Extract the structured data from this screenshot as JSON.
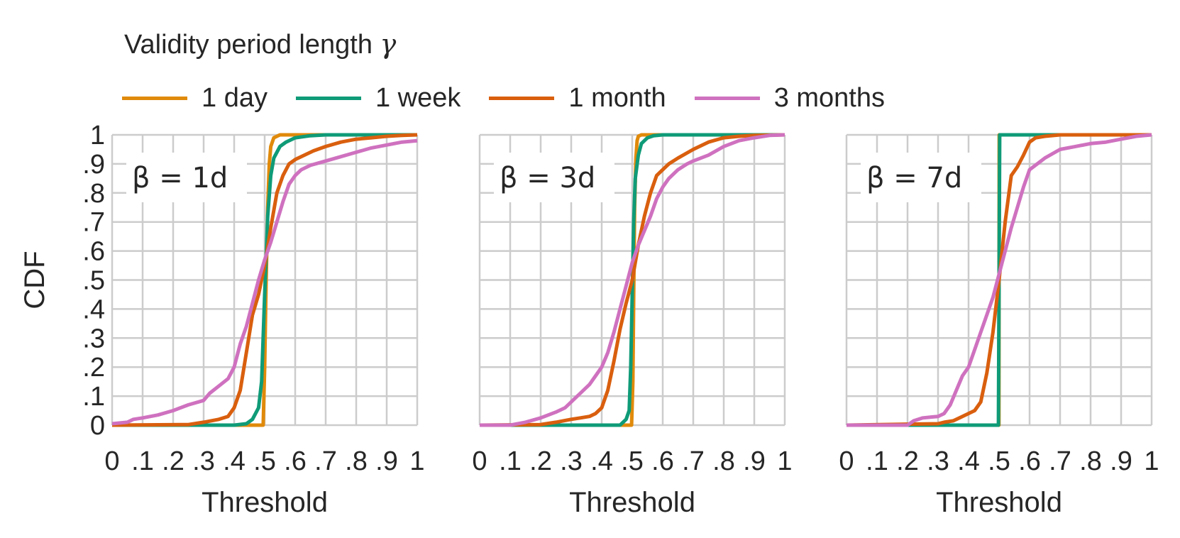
{
  "legend": {
    "title": "Validity period length",
    "title_symbol": "γ",
    "entries": [
      {
        "label": "1 day",
        "color": "#e08a0b"
      },
      {
        "label": "1 week",
        "color": "#0f9b77"
      },
      {
        "label": "1 month",
        "color": "#d95f0e"
      },
      {
        "label": "3 months",
        "color": "#cf71bf"
      }
    ]
  },
  "chart_data": [
    {
      "type": "line",
      "panel_label": "β = 1d",
      "xlabel": "Threshold",
      "ylabel": "CDF",
      "xlim": [
        0,
        1
      ],
      "ylim": [
        0,
        1
      ],
      "xticks": [
        "0",
        ".1",
        ".2",
        ".3",
        ".4",
        ".5",
        ".6",
        ".7",
        ".8",
        ".9",
        "1"
      ],
      "yticks": [
        "0",
        ".1",
        ".2",
        ".3",
        ".4",
        ".5",
        ".6",
        ".7",
        ".8",
        ".9",
        "1"
      ],
      "grid": true,
      "series": [
        {
          "name": "1 day",
          "x": [
            0,
            0.495,
            0.5,
            0.505,
            0.51,
            0.515,
            0.52,
            0.53,
            0.55,
            1.0
          ],
          "y": [
            0,
            0,
            0.2,
            0.5,
            0.75,
            0.9,
            0.96,
            0.99,
            1,
            1
          ]
        },
        {
          "name": "1 week",
          "x": [
            0,
            0.4,
            0.44,
            0.46,
            0.48,
            0.49,
            0.5,
            0.51,
            0.52,
            0.53,
            0.55,
            0.57,
            0.6,
            0.65,
            0.7,
            1.0
          ],
          "y": [
            0,
            0,
            0.005,
            0.02,
            0.06,
            0.15,
            0.45,
            0.72,
            0.86,
            0.92,
            0.96,
            0.975,
            0.99,
            0.997,
            1,
            1
          ]
        },
        {
          "name": "1 month",
          "x": [
            0,
            0.25,
            0.3,
            0.35,
            0.38,
            0.4,
            0.42,
            0.44,
            0.46,
            0.48,
            0.5,
            0.52,
            0.54,
            0.56,
            0.58,
            0.6,
            0.63,
            0.66,
            0.7,
            0.75,
            0.8,
            0.85,
            0.9,
            0.95,
            1.0
          ],
          "y": [
            0,
            0.002,
            0.01,
            0.02,
            0.03,
            0.06,
            0.12,
            0.25,
            0.38,
            0.45,
            0.55,
            0.68,
            0.8,
            0.86,
            0.9,
            0.915,
            0.93,
            0.945,
            0.96,
            0.975,
            0.985,
            0.99,
            0.995,
            0.998,
            1
          ]
        },
        {
          "name": "3 months",
          "x": [
            0,
            0.05,
            0.07,
            0.1,
            0.15,
            0.2,
            0.25,
            0.3,
            0.32,
            0.35,
            0.38,
            0.4,
            0.42,
            0.44,
            0.46,
            0.48,
            0.5,
            0.52,
            0.54,
            0.56,
            0.58,
            0.6,
            0.62,
            0.65,
            0.7,
            0.75,
            0.8,
            0.85,
            0.9,
            0.95,
            1.0
          ],
          "y": [
            0.005,
            0.01,
            0.02,
            0.025,
            0.035,
            0.05,
            0.07,
            0.085,
            0.11,
            0.135,
            0.16,
            0.2,
            0.28,
            0.34,
            0.42,
            0.5,
            0.57,
            0.63,
            0.7,
            0.77,
            0.83,
            0.86,
            0.88,
            0.895,
            0.91,
            0.925,
            0.94,
            0.955,
            0.965,
            0.975,
            0.98
          ]
        }
      ]
    },
    {
      "type": "line",
      "panel_label": "β = 3d",
      "xlabel": "Threshold",
      "ylabel": "",
      "xlim": [
        0,
        1
      ],
      "ylim": [
        0,
        1
      ],
      "xticks": [
        "0",
        ".1",
        ".2",
        ".3",
        ".4",
        ".5",
        ".6",
        ".7",
        ".8",
        ".9",
        "1"
      ],
      "grid": true,
      "series": [
        {
          "name": "1 day",
          "x": [
            0,
            0.498,
            0.502,
            0.505,
            0.508,
            0.512,
            0.516,
            0.52,
            0.53,
            1.0
          ],
          "y": [
            0,
            0,
            0.15,
            0.45,
            0.75,
            0.92,
            0.98,
            0.995,
            1,
            1
          ]
        },
        {
          "name": "1 week",
          "x": [
            0,
            0.46,
            0.47,
            0.48,
            0.49,
            0.495,
            0.5,
            0.505,
            0.51,
            0.52,
            0.53,
            0.55,
            0.57,
            0.6,
            1.0
          ],
          "y": [
            0,
            0,
            0.01,
            0.02,
            0.05,
            0.2,
            0.45,
            0.7,
            0.85,
            0.93,
            0.97,
            0.99,
            0.997,
            1,
            1
          ]
        },
        {
          "name": "1 month",
          "x": [
            0,
            0.2,
            0.25,
            0.3,
            0.33,
            0.36,
            0.38,
            0.4,
            0.42,
            0.44,
            0.46,
            0.48,
            0.5,
            0.52,
            0.54,
            0.56,
            0.58,
            0.6,
            0.62,
            0.65,
            0.7,
            0.75,
            0.8,
            0.85,
            0.9,
            1.0
          ],
          "y": [
            0,
            0.002,
            0.01,
            0.02,
            0.025,
            0.03,
            0.04,
            0.06,
            0.12,
            0.22,
            0.33,
            0.42,
            0.5,
            0.62,
            0.72,
            0.8,
            0.86,
            0.88,
            0.9,
            0.92,
            0.95,
            0.975,
            0.99,
            0.995,
            0.998,
            1
          ]
        },
        {
          "name": "3 months",
          "x": [
            0,
            0.1,
            0.15,
            0.2,
            0.25,
            0.28,
            0.3,
            0.33,
            0.36,
            0.38,
            0.4,
            0.42,
            0.44,
            0.46,
            0.48,
            0.5,
            0.52,
            0.54,
            0.56,
            0.58,
            0.6,
            0.62,
            0.65,
            0.68,
            0.7,
            0.75,
            0.8,
            0.85,
            0.9,
            0.95,
            1.0
          ],
          "y": [
            0,
            0,
            0.01,
            0.025,
            0.045,
            0.06,
            0.08,
            0.11,
            0.14,
            0.17,
            0.2,
            0.25,
            0.32,
            0.4,
            0.48,
            0.56,
            0.62,
            0.67,
            0.72,
            0.78,
            0.82,
            0.85,
            0.88,
            0.9,
            0.91,
            0.93,
            0.96,
            0.98,
            0.99,
            0.998,
            1
          ]
        }
      ]
    },
    {
      "type": "line",
      "panel_label": "β = 7d",
      "xlabel": "Threshold",
      "ylabel": "",
      "xlim": [
        0,
        1
      ],
      "ylim": [
        0,
        1
      ],
      "xticks": [
        "0",
        ".1",
        ".2",
        ".3",
        ".4",
        ".5",
        ".6",
        ".7",
        ".8",
        ".9",
        "1"
      ],
      "grid": true,
      "series": [
        {
          "name": "1 day",
          "x": [
            0,
            0.4995,
            0.5,
            0.5005,
            1.0
          ],
          "y": [
            0,
            0,
            0.5,
            1,
            1
          ]
        },
        {
          "name": "1 week",
          "x": [
            0,
            0.498,
            0.5,
            0.502,
            1.0
          ],
          "y": [
            0,
            0,
            0.5,
            1,
            1
          ]
        },
        {
          "name": "1 month",
          "x": [
            0,
            0.3,
            0.32,
            0.35,
            0.38,
            0.4,
            0.42,
            0.44,
            0.46,
            0.48,
            0.5,
            0.52,
            0.54,
            0.56,
            0.58,
            0.6,
            0.62,
            0.65,
            0.7,
            1.0
          ],
          "y": [
            0,
            0.005,
            0.01,
            0.015,
            0.03,
            0.04,
            0.05,
            0.08,
            0.18,
            0.32,
            0.5,
            0.7,
            0.86,
            0.89,
            0.93,
            0.975,
            0.99,
            0.995,
            1,
            1
          ]
        },
        {
          "name": "3 months",
          "x": [
            0,
            0.2,
            0.22,
            0.25,
            0.28,
            0.3,
            0.32,
            0.34,
            0.36,
            0.38,
            0.4,
            0.42,
            0.44,
            0.46,
            0.48,
            0.5,
            0.52,
            0.54,
            0.56,
            0.58,
            0.6,
            0.65,
            0.7,
            0.75,
            0.8,
            0.85,
            0.9,
            0.95,
            1.0
          ],
          "y": [
            0,
            0,
            0.015,
            0.025,
            0.028,
            0.03,
            0.04,
            0.07,
            0.12,
            0.17,
            0.2,
            0.26,
            0.32,
            0.38,
            0.44,
            0.52,
            0.6,
            0.68,
            0.75,
            0.82,
            0.88,
            0.92,
            0.95,
            0.96,
            0.97,
            0.975,
            0.985,
            0.995,
            1
          ]
        }
      ]
    }
  ]
}
